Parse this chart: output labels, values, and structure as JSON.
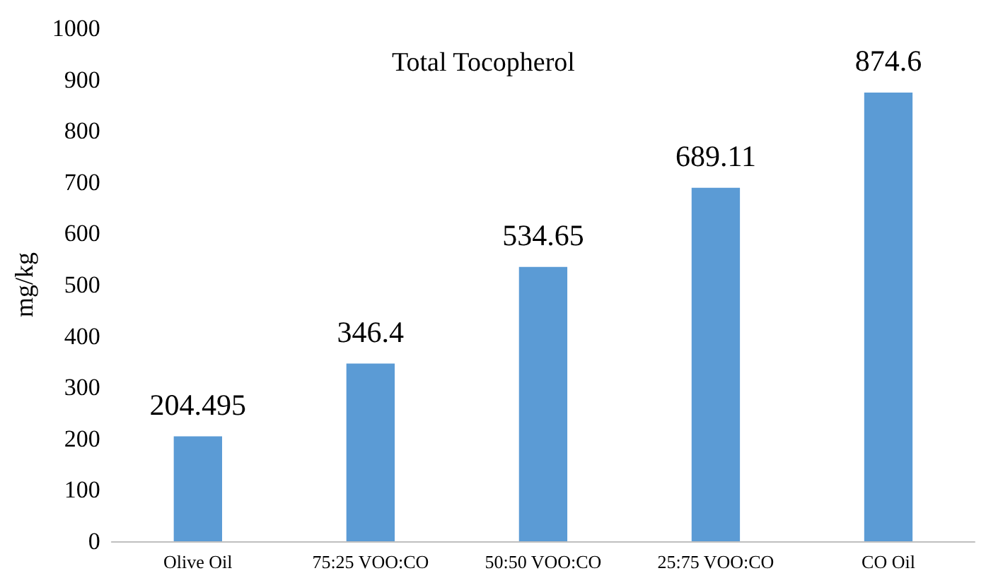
{
  "chart_data": {
    "type": "bar",
    "title": "Total Tocopherol",
    "ylabel": "mg/kg",
    "categories": [
      "Olive Oil",
      "75:25 VOO:CO",
      "50:50 VOO:CO",
      "25:75 VOO:CO",
      "CO Oil"
    ],
    "values": [
      204.495,
      346.4,
      534.65,
      689.11,
      874.6
    ],
    "color": "#5b9bd5",
    "ylim": [
      0,
      1000
    ],
    "yticks": [
      0,
      100,
      200,
      300,
      400,
      500,
      600,
      700,
      800,
      900,
      1000
    ],
    "grid": false,
    "data_labels": true
  }
}
